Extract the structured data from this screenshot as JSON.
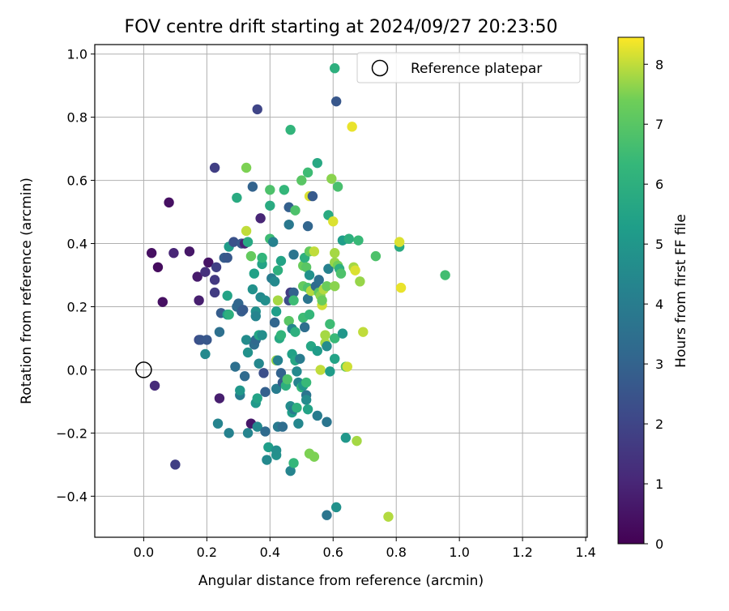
{
  "chart_data": {
    "type": "scatter",
    "title": "FOV centre drift starting at 2024/09/27 20:23:50",
    "xlabel": "Angular distance from reference (arcmin)",
    "ylabel": "Rotation from reference (arcmin)",
    "xlim": [
      -0.155,
      1.405
    ],
    "ylim": [
      -0.53,
      1.03
    ],
    "xticks": [
      0.0,
      0.2,
      0.4,
      0.6,
      0.8,
      1.0,
      1.2,
      1.4
    ],
    "xtick_labels": [
      "0.0",
      "0.2",
      "0.4",
      "0.6",
      "0.8",
      "1.0",
      "1.2",
      "1.4"
    ],
    "yticks": [
      -0.4,
      -0.2,
      0.0,
      0.2,
      0.4,
      0.6,
      0.8,
      1.0
    ],
    "ytick_labels": [
      "−0.4",
      "−0.2",
      "0.0",
      "0.2",
      "0.4",
      "0.6",
      "0.8",
      "1.0"
    ],
    "grid": true,
    "legend": {
      "placement": "top-right",
      "entries": [
        "Reference platepar"
      ]
    },
    "reference_point": {
      "x": 0.0,
      "y": 0.0
    },
    "colorbar": {
      "label": "Hours from first FF file",
      "colormap": "viridis",
      "min": 0,
      "max": 8.45,
      "ticks": [
        0,
        1,
        2,
        3,
        4,
        5,
        6,
        7,
        8
      ],
      "tick_labels": [
        "0",
        "1",
        "2",
        "3",
        "4",
        "5",
        "6",
        "7",
        "8"
      ]
    },
    "points": [
      {
        "x": 0.025,
        "y": 0.37,
        "h": 0.4
      },
      {
        "x": 0.045,
        "y": 0.325,
        "h": 0.3
      },
      {
        "x": 0.06,
        "y": 0.215,
        "h": 0.4
      },
      {
        "x": 0.035,
        "y": -0.05,
        "h": 1.2
      },
      {
        "x": 0.08,
        "y": 0.53,
        "h": 0.4
      },
      {
        "x": 0.095,
        "y": 0.37,
        "h": 1.0
      },
      {
        "x": 0.1,
        "y": -0.3,
        "h": 1.8
      },
      {
        "x": 0.145,
        "y": 0.375,
        "h": 0.6
      },
      {
        "x": 0.17,
        "y": 0.295,
        "h": 0.7
      },
      {
        "x": 0.175,
        "y": 0.22,
        "h": 0.8
      },
      {
        "x": 0.195,
        "y": 0.31,
        "h": 1.3
      },
      {
        "x": 0.205,
        "y": 0.34,
        "h": 0.5
      },
      {
        "x": 0.225,
        "y": 0.64,
        "h": 1.8
      },
      {
        "x": 0.225,
        "y": 0.285,
        "h": 1.6
      },
      {
        "x": 0.225,
        "y": 0.245,
        "h": 1.7
      },
      {
        "x": 0.23,
        "y": 0.325,
        "h": 1.8
      },
      {
        "x": 0.175,
        "y": 0.095,
        "h": 2.2
      },
      {
        "x": 0.18,
        "y": 0.095,
        "h": 2.5
      },
      {
        "x": 0.2,
        "y": 0.095,
        "h": 2.6
      },
      {
        "x": 0.195,
        "y": 0.05,
        "h": 4.5
      },
      {
        "x": 0.235,
        "y": -0.17,
        "h": 4.3
      },
      {
        "x": 0.24,
        "y": 0.12,
        "h": 3.5
      },
      {
        "x": 0.245,
        "y": 0.18,
        "h": 2.8
      },
      {
        "x": 0.24,
        "y": -0.09,
        "h": 0.8
      },
      {
        "x": 0.255,
        "y": 0.355,
        "h": 2.8
      },
      {
        "x": 0.265,
        "y": 0.355,
        "h": 2.6
      },
      {
        "x": 0.265,
        "y": 0.235,
        "h": 5.5
      },
      {
        "x": 0.27,
        "y": 0.39,
        "h": 5.2
      },
      {
        "x": 0.265,
        "y": 0.175,
        "h": 5.3
      },
      {
        "x": 0.27,
        "y": 0.175,
        "h": 6.0
      },
      {
        "x": 0.27,
        "y": -0.2,
        "h": 4.2
      },
      {
        "x": 0.285,
        "y": 0.405,
        "h": 2.4
      },
      {
        "x": 0.29,
        "y": 0.01,
        "h": 3.5
      },
      {
        "x": 0.295,
        "y": 0.545,
        "h": 5.8
      },
      {
        "x": 0.295,
        "y": 0.2,
        "h": 3.3
      },
      {
        "x": 0.3,
        "y": 0.21,
        "h": 3.1
      },
      {
        "x": 0.305,
        "y": -0.08,
        "h": 4.0
      },
      {
        "x": 0.305,
        "y": -0.065,
        "h": 5.0
      },
      {
        "x": 0.31,
        "y": 0.185,
        "h": 2.9
      },
      {
        "x": 0.315,
        "y": 0.19,
        "h": 2.7
      },
      {
        "x": 0.31,
        "y": 0.4,
        "h": 2.6
      },
      {
        "x": 0.32,
        "y": 0.4,
        "h": 0.9
      },
      {
        "x": 0.325,
        "y": 0.64,
        "h": 7.5
      },
      {
        "x": 0.325,
        "y": 0.44,
        "h": 8.0
      },
      {
        "x": 0.32,
        "y": -0.02,
        "h": 3.3
      },
      {
        "x": 0.325,
        "y": 0.095,
        "h": 4.6
      },
      {
        "x": 0.33,
        "y": 0.055,
        "h": 4.8
      },
      {
        "x": 0.33,
        "y": 0.405,
        "h": 5.7
      },
      {
        "x": 0.33,
        "y": -0.2,
        "h": 4.3
      },
      {
        "x": 0.34,
        "y": -0.17,
        "h": 0.6
      },
      {
        "x": 0.34,
        "y": 0.36,
        "h": 7.2
      },
      {
        "x": 0.345,
        "y": 0.58,
        "h": 3.0
      },
      {
        "x": 0.345,
        "y": 0.255,
        "h": 4.8
      },
      {
        "x": 0.35,
        "y": 0.305,
        "h": 5.4
      },
      {
        "x": 0.35,
        "y": 0.08,
        "h": 3.4
      },
      {
        "x": 0.355,
        "y": 0.095,
        "h": 3.2
      },
      {
        "x": 0.355,
        "y": 0.185,
        "h": 4.7
      },
      {
        "x": 0.355,
        "y": 0.17,
        "h": 4.3
      },
      {
        "x": 0.355,
        "y": -0.105,
        "h": 5.1
      },
      {
        "x": 0.36,
        "y": -0.09,
        "h": 5.5
      },
      {
        "x": 0.36,
        "y": -0.18,
        "h": 4.5
      },
      {
        "x": 0.36,
        "y": 0.825,
        "h": 2.0
      },
      {
        "x": 0.365,
        "y": 0.02,
        "h": 4.4
      },
      {
        "x": 0.365,
        "y": 0.11,
        "h": 5.6
      },
      {
        "x": 0.37,
        "y": 0.48,
        "h": 1.0
      },
      {
        "x": 0.37,
        "y": 0.23,
        "h": 4.5
      },
      {
        "x": 0.375,
        "y": 0.335,
        "h": 5.5
      },
      {
        "x": 0.375,
        "y": 0.355,
        "h": 6.2
      },
      {
        "x": 0.375,
        "y": 0.11,
        "h": 4.7
      },
      {
        "x": 0.38,
        "y": -0.01,
        "h": 2.3
      },
      {
        "x": 0.385,
        "y": 0.22,
        "h": 4.7
      },
      {
        "x": 0.385,
        "y": -0.07,
        "h": 2.9
      },
      {
        "x": 0.385,
        "y": -0.195,
        "h": 3.3
      },
      {
        "x": 0.39,
        "y": -0.285,
        "h": 4.5
      },
      {
        "x": 0.395,
        "y": -0.245,
        "h": 5.3
      },
      {
        "x": 0.4,
        "y": 0.415,
        "h": 6.5
      },
      {
        "x": 0.4,
        "y": 0.52,
        "h": 5.8
      },
      {
        "x": 0.4,
        "y": 0.57,
        "h": 6.8
      },
      {
        "x": 0.405,
        "y": 0.29,
        "h": 4.0
      },
      {
        "x": 0.41,
        "y": 0.405,
        "h": 4.2
      },
      {
        "x": 0.415,
        "y": 0.15,
        "h": 3.1
      },
      {
        "x": 0.415,
        "y": 0.28,
        "h": 4.5
      },
      {
        "x": 0.42,
        "y": 0.03,
        "h": 7.7
      },
      {
        "x": 0.42,
        "y": -0.27,
        "h": 4.8
      },
      {
        "x": 0.42,
        "y": 0.185,
        "h": 5.3
      },
      {
        "x": 0.42,
        "y": -0.06,
        "h": 4.0
      },
      {
        "x": 0.42,
        "y": -0.255,
        "h": 4.7
      },
      {
        "x": 0.425,
        "y": 0.03,
        "h": 4.2
      },
      {
        "x": 0.425,
        "y": 0.315,
        "h": 6.0
      },
      {
        "x": 0.425,
        "y": 0.22,
        "h": 7.8
      },
      {
        "x": 0.425,
        "y": -0.18,
        "h": 3.9
      },
      {
        "x": 0.43,
        "y": 0.1,
        "h": 5.7
      },
      {
        "x": 0.435,
        "y": 0.345,
        "h": 5.5
      },
      {
        "x": 0.435,
        "y": 0.11,
        "h": 6.2
      },
      {
        "x": 0.435,
        "y": -0.01,
        "h": 3.0
      },
      {
        "x": 0.44,
        "y": -0.04,
        "h": 2.8
      },
      {
        "x": 0.44,
        "y": -0.18,
        "h": 3.4
      },
      {
        "x": 0.445,
        "y": 0.57,
        "h": 6.3
      },
      {
        "x": 0.45,
        "y": -0.05,
        "h": 6.0
      },
      {
        "x": 0.455,
        "y": -0.03,
        "h": 6.8
      },
      {
        "x": 0.46,
        "y": 0.515,
        "h": 2.9
      },
      {
        "x": 0.46,
        "y": 0.46,
        "h": 3.8
      },
      {
        "x": 0.46,
        "y": 0.155,
        "h": 7.0
      },
      {
        "x": 0.46,
        "y": 0.22,
        "h": 2.2
      },
      {
        "x": 0.465,
        "y": 0.245,
        "h": 1.7
      },
      {
        "x": 0.465,
        "y": -0.32,
        "h": 4.3
      },
      {
        "x": 0.465,
        "y": -0.115,
        "h": 4.6
      },
      {
        "x": 0.465,
        "y": 0.76,
        "h": 6.2
      },
      {
        "x": 0.47,
        "y": 0.05,
        "h": 5.4
      },
      {
        "x": 0.47,
        "y": 0.13,
        "h": 4.3
      },
      {
        "x": 0.47,
        "y": -0.135,
        "h": 5.3
      },
      {
        "x": 0.475,
        "y": 0.365,
        "h": 3.7
      },
      {
        "x": 0.475,
        "y": 0.245,
        "h": 3.0
      },
      {
        "x": 0.475,
        "y": 0.22,
        "h": 6.5
      },
      {
        "x": 0.475,
        "y": -0.295,
        "h": 6.3
      },
      {
        "x": 0.475,
        "y": -0.125,
        "h": 4.0
      },
      {
        "x": 0.48,
        "y": 0.505,
        "h": 6.8
      },
      {
        "x": 0.48,
        "y": 0.12,
        "h": 6.0
      },
      {
        "x": 0.48,
        "y": 0.03,
        "h": 5.6
      },
      {
        "x": 0.485,
        "y": -0.005,
        "h": 4.5
      },
      {
        "x": 0.485,
        "y": -0.12,
        "h": 6.0
      },
      {
        "x": 0.49,
        "y": -0.17,
        "h": 4.4
      },
      {
        "x": 0.49,
        "y": -0.04,
        "h": 4.3
      },
      {
        "x": 0.495,
        "y": 0.035,
        "h": 4.0
      },
      {
        "x": 0.5,
        "y": -0.055,
        "h": 6.3
      },
      {
        "x": 0.5,
        "y": 0.6,
        "h": 7.0
      },
      {
        "x": 0.505,
        "y": 0.33,
        "h": 7.3
      },
      {
        "x": 0.505,
        "y": 0.165,
        "h": 6.5
      },
      {
        "x": 0.505,
        "y": -0.05,
        "h": 5.0
      },
      {
        "x": 0.505,
        "y": 0.265,
        "h": 7.2
      },
      {
        "x": 0.51,
        "y": 0.135,
        "h": 3.4
      },
      {
        "x": 0.51,
        "y": 0.355,
        "h": 6.0
      },
      {
        "x": 0.515,
        "y": -0.08,
        "h": 3.7
      },
      {
        "x": 0.515,
        "y": -0.095,
        "h": 4.6
      },
      {
        "x": 0.515,
        "y": 0.325,
        "h": 7.0
      },
      {
        "x": 0.515,
        "y": -0.04,
        "h": 6.4
      },
      {
        "x": 0.52,
        "y": -0.125,
        "h": 5.5
      },
      {
        "x": 0.52,
        "y": 0.625,
        "h": 6.5
      },
      {
        "x": 0.52,
        "y": 0.455,
        "h": 3.1
      },
      {
        "x": 0.52,
        "y": 0.26,
        "h": 6.8
      },
      {
        "x": 0.52,
        "y": 0.225,
        "h": 3.7
      },
      {
        "x": 0.525,
        "y": 0.175,
        "h": 6.3
      },
      {
        "x": 0.525,
        "y": 0.3,
        "h": 4.8
      },
      {
        "x": 0.525,
        "y": 0.375,
        "h": 7.2
      },
      {
        "x": 0.525,
        "y": -0.265,
        "h": 7.5
      },
      {
        "x": 0.525,
        "y": 0.55,
        "h": 8.2
      },
      {
        "x": 0.53,
        "y": 0.25,
        "h": 7.9
      },
      {
        "x": 0.53,
        "y": 0.075,
        "h": 5.6
      },
      {
        "x": 0.535,
        "y": 0.55,
        "h": 2.7
      },
      {
        "x": 0.54,
        "y": 0.375,
        "h": 8.0
      },
      {
        "x": 0.54,
        "y": -0.275,
        "h": 7.5
      },
      {
        "x": 0.545,
        "y": 0.265,
        "h": 3.3
      },
      {
        "x": 0.55,
        "y": 0.655,
        "h": 5.7
      },
      {
        "x": 0.55,
        "y": -0.145,
        "h": 4.0
      },
      {
        "x": 0.55,
        "y": 0.06,
        "h": 5.2
      },
      {
        "x": 0.555,
        "y": 0.285,
        "h": 3.5
      },
      {
        "x": 0.555,
        "y": 0.245,
        "h": 7.1
      },
      {
        "x": 0.56,
        "y": 0.0,
        "h": 8.0
      },
      {
        "x": 0.56,
        "y": 0.235,
        "h": 7.6
      },
      {
        "x": 0.565,
        "y": 0.205,
        "h": 8.1
      },
      {
        "x": 0.565,
        "y": 0.22,
        "h": 7.3
      },
      {
        "x": 0.57,
        "y": 0.255,
        "h": 7.9
      },
      {
        "x": 0.575,
        "y": 0.085,
        "h": 7.8
      },
      {
        "x": 0.575,
        "y": 0.11,
        "h": 7.8
      },
      {
        "x": 0.58,
        "y": 0.265,
        "h": 7.3
      },
      {
        "x": 0.58,
        "y": 0.075,
        "h": 4.6
      },
      {
        "x": 0.58,
        "y": -0.165,
        "h": 3.7
      },
      {
        "x": 0.58,
        "y": -0.46,
        "h": 3.7
      },
      {
        "x": 0.585,
        "y": 0.49,
        "h": 5.8
      },
      {
        "x": 0.585,
        "y": 0.32,
        "h": 4.2
      },
      {
        "x": 0.59,
        "y": 0.145,
        "h": 6.5
      },
      {
        "x": 0.59,
        "y": -0.005,
        "h": 5.2
      },
      {
        "x": 0.595,
        "y": 0.605,
        "h": 7.6
      },
      {
        "x": 0.6,
        "y": 0.47,
        "h": 8.2
      },
      {
        "x": 0.605,
        "y": 0.955,
        "h": 6.0
      },
      {
        "x": 0.605,
        "y": 0.37,
        "h": 7.8
      },
      {
        "x": 0.605,
        "y": 0.34,
        "h": 7.7
      },
      {
        "x": 0.605,
        "y": 0.265,
        "h": 7.6
      },
      {
        "x": 0.605,
        "y": 0.1,
        "h": 6.4
      },
      {
        "x": 0.605,
        "y": 0.035,
        "h": 5.5
      },
      {
        "x": 0.61,
        "y": 0.85,
        "h": 2.6
      },
      {
        "x": 0.61,
        "y": -0.435,
        "h": 4.8
      },
      {
        "x": 0.615,
        "y": 0.58,
        "h": 6.7
      },
      {
        "x": 0.615,
        "y": 0.33,
        "h": 7.4
      },
      {
        "x": 0.62,
        "y": 0.32,
        "h": 6.0
      },
      {
        "x": 0.625,
        "y": 0.305,
        "h": 6.8
      },
      {
        "x": 0.63,
        "y": 0.41,
        "h": 5.3
      },
      {
        "x": 0.63,
        "y": 0.115,
        "h": 5.0
      },
      {
        "x": 0.64,
        "y": -0.215,
        "h": 5.0
      },
      {
        "x": 0.64,
        "y": 0.01,
        "h": 7.0
      },
      {
        "x": 0.645,
        "y": 0.01,
        "h": 8.1
      },
      {
        "x": 0.65,
        "y": 0.415,
        "h": 6.0
      },
      {
        "x": 0.66,
        "y": 0.77,
        "h": 8.3
      },
      {
        "x": 0.665,
        "y": 0.325,
        "h": 7.8
      },
      {
        "x": 0.67,
        "y": 0.315,
        "h": 8.2
      },
      {
        "x": 0.675,
        "y": -0.225,
        "h": 7.8
      },
      {
        "x": 0.68,
        "y": 0.41,
        "h": 6.4
      },
      {
        "x": 0.685,
        "y": 0.28,
        "h": 7.7
      },
      {
        "x": 0.695,
        "y": 0.12,
        "h": 8.0
      },
      {
        "x": 0.735,
        "y": 0.36,
        "h": 6.8
      },
      {
        "x": 0.775,
        "y": -0.465,
        "h": 7.9
      },
      {
        "x": 0.81,
        "y": 0.39,
        "h": 5.8
      },
      {
        "x": 0.81,
        "y": 0.405,
        "h": 8.2
      },
      {
        "x": 0.815,
        "y": 0.26,
        "h": 8.3
      },
      {
        "x": 0.955,
        "y": 0.3,
        "h": 6.6
      }
    ]
  }
}
